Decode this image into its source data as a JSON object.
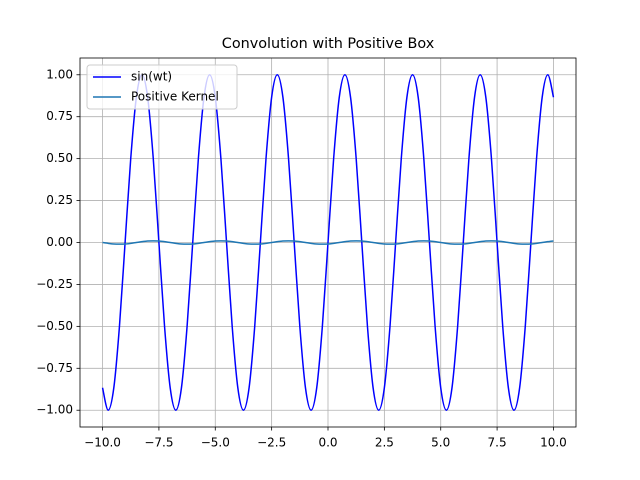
{
  "chart_data": {
    "type": "line",
    "title": "Convolution with Positive Box",
    "x": [
      -10,
      -9.75,
      -9.5,
      -9.25,
      -9,
      -8.75,
      -8.5,
      -8.25,
      -8,
      -7.75,
      -7.5,
      -7.25,
      -7,
      -6.75,
      -6.5,
      -6.25,
      -6,
      -5.75,
      -5.5,
      -5.25,
      -5,
      -4.75,
      -4.5,
      -4.25,
      -4,
      -3.75,
      -3.5,
      -3.25,
      -3,
      -2.75,
      -2.5,
      -2.25,
      -2,
      -1.75,
      -1.5,
      -1.25,
      -1,
      -0.75,
      -0.5,
      -0.25,
      0,
      0.25,
      0.5,
      0.75,
      1,
      1.25,
      1.5,
      1.75,
      2,
      2.25,
      2.5,
      2.75,
      3,
      3.25,
      3.5,
      3.75,
      4,
      4.25,
      4.5,
      4.75,
      5,
      5.25,
      5.5,
      5.75,
      6,
      6.25,
      6.5,
      6.75,
      7,
      7.25,
      7.5,
      7.75,
      8,
      8.25,
      8.5,
      8.75,
      9,
      9.25,
      9.5,
      9.75,
      10
    ],
    "series": [
      {
        "name": "sin(wt)",
        "color": "#0000ff",
        "values": [
          -0.866,
          -1,
          -0.866,
          -0.5,
          0,
          0.5,
          0.866,
          1,
          0.866,
          0.5,
          0,
          -0.5,
          -0.866,
          -1,
          -0.866,
          -0.5,
          0,
          0.5,
          0.866,
          1,
          0.866,
          0.5,
          0,
          -0.5,
          -0.866,
          -1,
          -0.866,
          -0.5,
          0,
          0.5,
          0.866,
          1,
          0.866,
          0.5,
          0,
          -0.5,
          -0.866,
          -1,
          -0.866,
          -0.5,
          0,
          0.5,
          0.866,
          1,
          0.866,
          0.5,
          0,
          -0.5,
          -0.866,
          -1,
          -0.866,
          -0.5,
          0,
          0.5,
          0.866,
          1,
          0.866,
          0.5,
          0,
          -0.5,
          -0.866,
          -1,
          -0.866,
          -0.5,
          0,
          0.5,
          0.866,
          1,
          0.866,
          0.5,
          0,
          -0.5,
          -0.866,
          -1,
          -0.866,
          -0.5,
          0,
          0.5,
          0.866,
          1,
          0.866
        ]
      },
      {
        "name": "Positive Kernel",
        "color": "#1f77b4",
        "values": [
          0,
          -0.005,
          -0.009,
          -0.01,
          -0.009,
          -0.005,
          0,
          0.005,
          0.009,
          0.01,
          0.009,
          0.005,
          0,
          -0.005,
          -0.009,
          -0.01,
          -0.009,
          -0.005,
          0,
          0.005,
          0.009,
          0.01,
          0.009,
          0.005,
          0,
          -0.005,
          -0.009,
          -0.01,
          -0.009,
          -0.005,
          0,
          0.005,
          0.009,
          0.01,
          0.009,
          0.005,
          0,
          -0.005,
          -0.009,
          -0.01,
          -0.009,
          -0.005,
          0,
          0.005,
          0.009,
          0.01,
          0.009,
          0.005,
          0,
          -0.005,
          -0.009,
          -0.01,
          -0.009,
          -0.005,
          0,
          0.005,
          0.009,
          0.01,
          0.009,
          0.005,
          0,
          -0.005,
          -0.009,
          -0.01,
          -0.009,
          -0.005,
          0,
          0.005,
          0.009,
          0.01,
          0.009,
          0.005,
          0,
          -0.005,
          -0.009,
          -0.01,
          -0.009,
          -0.005,
          0,
          0.005,
          0.009
        ]
      }
    ],
    "xlim": [
      -11,
      11
    ],
    "xticks": [
      {
        "value": -10,
        "label": "−10.0"
      },
      {
        "value": -7.5,
        "label": "−7.5"
      },
      {
        "value": -5,
        "label": "−5.0"
      },
      {
        "value": -2.5,
        "label": "−2.5"
      },
      {
        "value": 0,
        "label": "0.0"
      },
      {
        "value": 2.5,
        "label": "2.5"
      },
      {
        "value": 5,
        "label": "5.0"
      },
      {
        "value": 7.5,
        "label": "7.5"
      },
      {
        "value": 10,
        "label": "10.0"
      }
    ],
    "ylim": [
      -1.1,
      1.1
    ],
    "yticks": [
      {
        "value": -1,
        "label": "−1.00"
      },
      {
        "value": -0.75,
        "label": "−0.75"
      },
      {
        "value": -0.5,
        "label": "−0.50"
      },
      {
        "value": -0.25,
        "label": "−0.25"
      },
      {
        "value": 0,
        "label": "0.00"
      },
      {
        "value": 0.25,
        "label": "0.25"
      },
      {
        "value": 0.5,
        "label": "0.50"
      },
      {
        "value": 0.75,
        "label": "0.75"
      },
      {
        "value": 1,
        "label": "1.00"
      }
    ],
    "grid": true,
    "legend": "upper-left"
  }
}
